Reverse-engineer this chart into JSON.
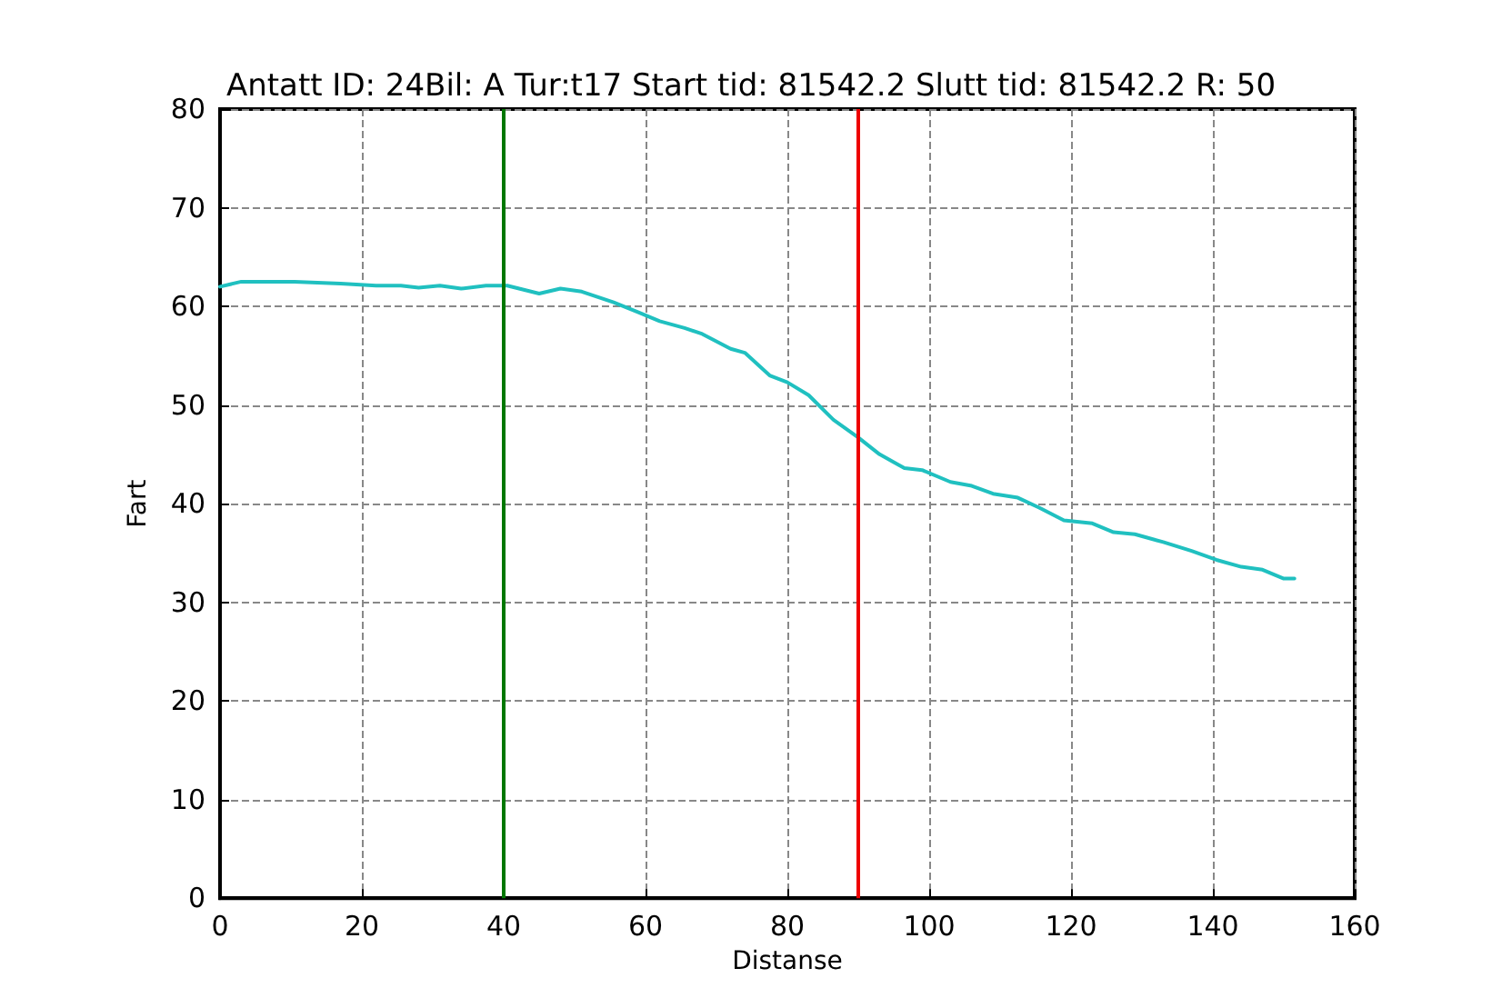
{
  "chart_data": {
    "type": "line",
    "title": "Antatt ID: 24Bil: A Tur:t17 Start tid: 81542.2 Slutt tid: 81542.2 R: 50",
    "xlabel": "Distanse",
    "ylabel": "Fart",
    "xlim": [
      0,
      160
    ],
    "xticks": [
      0,
      20,
      40,
      60,
      80,
      100,
      120,
      140,
      160
    ],
    "ylim": [
      0,
      80
    ],
    "yticks": [
      0,
      10,
      20,
      30,
      40,
      50,
      60,
      70,
      80
    ],
    "grid": true,
    "marker": "none",
    "line_style": "solid",
    "series": [
      {
        "color": "#20c0c0",
        "x": [
          0,
          3,
          10.5,
          17,
          22,
          25.5,
          28,
          31,
          34,
          37.5,
          40.5,
          45,
          48,
          51,
          55.5,
          59,
          62,
          65.5,
          68,
          72,
          74,
          77.5,
          80,
          83,
          86.5,
          90,
          93,
          96.5,
          99,
          103,
          106,
          109,
          112.5,
          115.5,
          119,
          123,
          126,
          129,
          133,
          137,
          140.5,
          144,
          147,
          150,
          151.5
        ],
        "values": [
          62.0,
          62.5,
          62.5,
          62.3,
          62.1,
          62.1,
          61.9,
          62.1,
          61.8,
          62.1,
          62.1,
          61.3,
          61.8,
          61.5,
          60.4,
          59.4,
          58.5,
          57.8,
          57.2,
          55.7,
          55.3,
          53.0,
          52.3,
          51.0,
          48.5,
          46.7,
          45.0,
          43.6,
          43.4,
          42.2,
          41.8,
          41.0,
          40.6,
          39.6,
          38.3,
          38.0,
          37.1,
          36.9,
          36.1,
          35.2,
          34.3,
          33.6,
          33.3,
          32.4,
          32.4
        ]
      }
    ],
    "ref_lines": [
      {
        "axis": "x",
        "value": 40,
        "color": "#007700"
      },
      {
        "axis": "x",
        "value": 90,
        "color": "#ee0000"
      }
    ]
  }
}
